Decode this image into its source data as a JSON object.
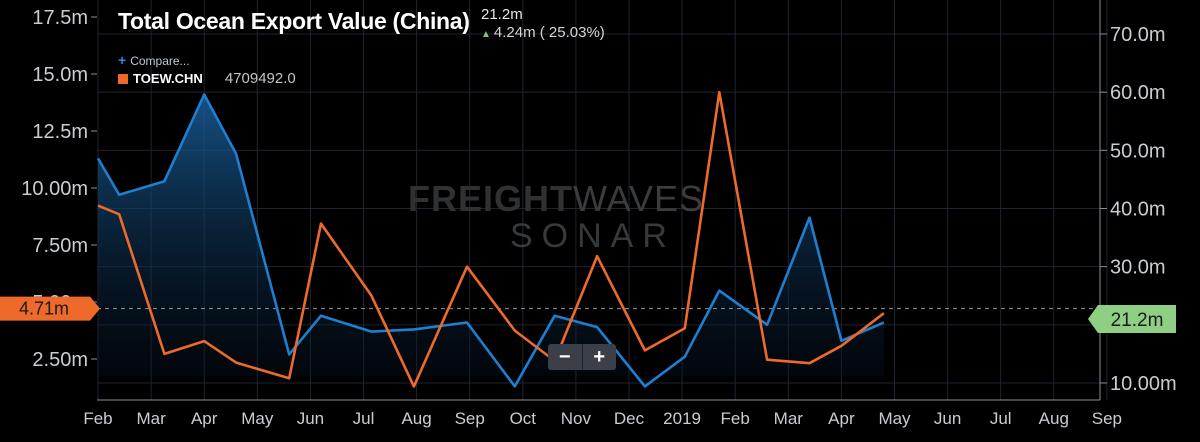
{
  "header": {
    "title": "Total Ocean Export Value (China)",
    "last_value": "21.2m",
    "change": "4.24m ( 25.03%)",
    "compare_label": "Compare...",
    "series_name": "TOEW.CHN",
    "series_value": "4709492.0"
  },
  "badges": {
    "left": "4.71m",
    "right": "21.2m"
  },
  "zoom": {
    "minus": "−",
    "plus": "+"
  },
  "watermark": {
    "line1a": "FREIGHT",
    "line1b": "WAVES",
    "line2": "SONAR"
  },
  "colors": {
    "background": "#000000",
    "blue_series": "#1e7fd0",
    "orange_series": "#ee6a2b",
    "right_badge": "#8fcf84",
    "left_badge": "#ee6a2b",
    "grid": "#1e2530"
  },
  "chart_data": {
    "type": "line",
    "title": "Total Ocean Export Value (China)",
    "x_tick_labels": [
      "Feb",
      "Mar",
      "Apr",
      "May",
      "Jun",
      "Jul",
      "Aug",
      "Sep",
      "Oct",
      "Nov",
      "Dec",
      "2019",
      "Feb",
      "Mar",
      "Apr",
      "May",
      "Jun",
      "Jul",
      "Aug",
      "Sep"
    ],
    "left_axis": {
      "ticks": [
        "2.50m",
        "5.00m",
        "7.50m",
        "10.00m",
        "12.5m",
        "15.0m",
        "17.5m"
      ],
      "tick_values": [
        2.5,
        5,
        7.5,
        10,
        12.5,
        15,
        17.5
      ],
      "ylim": [
        0.3,
        18.2
      ]
    },
    "right_axis": {
      "ticks": [
        "10.00m",
        "20.0m",
        "30.0m",
        "40.0m",
        "50.0m",
        "60.0m",
        "70.0m"
      ],
      "tick_values": [
        10,
        20,
        30,
        40,
        50,
        60,
        70
      ],
      "ylim": [
        9.8,
        72
      ]
    },
    "series": [
      {
        "axis": "left",
        "color": "#1e7fd0",
        "x": [
          0,
          0.4,
          1.25,
          2.0,
          2.6,
          3.6,
          4.2,
          5.15,
          5.95,
          6.95,
          7.85,
          8.6,
          9.4,
          10.3,
          11.05,
          11.7,
          12.6,
          13.4,
          14.0,
          14.8,
          15.35,
          15.8,
          16.45,
          16.95
        ],
        "values": [
          11.3,
          9.7,
          10.3,
          14.1,
          11.5,
          2.7,
          4.4,
          3.7,
          3.8,
          4.1,
          1.3,
          4.4,
          3.9,
          1.3,
          2.6,
          5.5,
          4.0,
          8.7,
          3.3,
          4.1,
          null,
          null,
          null,
          null
        ]
      },
      {
        "name": "TOEW.CHN",
        "axis": "right",
        "color": "#ee6a2b",
        "x": [
          0,
          0.4,
          1.25,
          2.0,
          2.6,
          3.6,
          4.2,
          5.15,
          5.95,
          6.95,
          7.85,
          8.6,
          9.4,
          10.3,
          11.05,
          11.7,
          12.6,
          13.4,
          14.0,
          14.8,
          15.35,
          15.8,
          16.45,
          16.95
        ],
        "values": [
          40.5,
          39.0,
          15.0,
          17.2,
          13.5,
          10.8,
          37.4,
          25.0,
          9.4,
          30.0,
          19.0,
          13.8,
          31.8,
          15.6,
          19.4,
          60.0,
          14.0,
          13.4,
          16.4,
          22.0,
          null,
          null,
          null,
          null
        ]
      }
    ],
    "reference_line": {
      "axis": "left",
      "value": 4.71
    },
    "grid": true,
    "legend": "top-left"
  }
}
